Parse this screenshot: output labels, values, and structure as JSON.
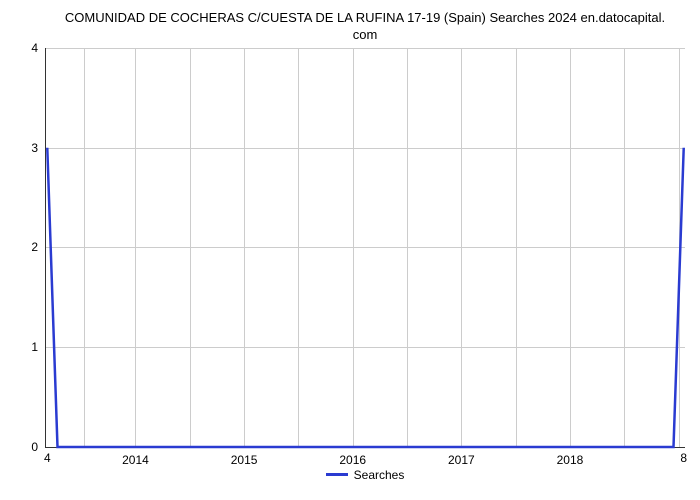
{
  "chart": {
    "type": "line",
    "title_line1": "COMUNIDAD DE COCHERAS C/CUESTA DE LA RUFINA 17-19 (Spain) Searches 2024 en.datocapital.",
    "title_line2": "com",
    "title_fontsize": 13,
    "title_color": "#000000",
    "background_color": "#ffffff",
    "grid_color": "#cccccc",
    "axis_color": "#333333",
    "ylabel_fontsize": 12,
    "xlabel_fontsize": 12,
    "ylim": [
      0,
      4
    ],
    "y_ticks": [
      0,
      1,
      2,
      3,
      4
    ],
    "x_ticks": [
      "2014",
      "2015",
      "2016",
      "2017",
      "2018"
    ],
    "x_tick_positions_pct": [
      14,
      31,
      48,
      65,
      82
    ],
    "minor_v_grid_pct": [
      6,
      14,
      22.5,
      31,
      39.5,
      48,
      56.5,
      65,
      73.5,
      82,
      90.5,
      99
    ],
    "bottom_left_label": "4",
    "bottom_right_label": "8",
    "series": {
      "name": "Searches",
      "color": "#2a3bd1",
      "line_width": 2.5,
      "points_pct": [
        {
          "x": 0.2,
          "y": 25
        },
        {
          "x": 1.8,
          "y": 100
        },
        {
          "x": 98.2,
          "y": 100
        },
        {
          "x": 99.8,
          "y": 25
        }
      ]
    },
    "legend": {
      "label": "Searches",
      "swatch_color": "#2a3bd1",
      "fontsize": 12
    }
  }
}
